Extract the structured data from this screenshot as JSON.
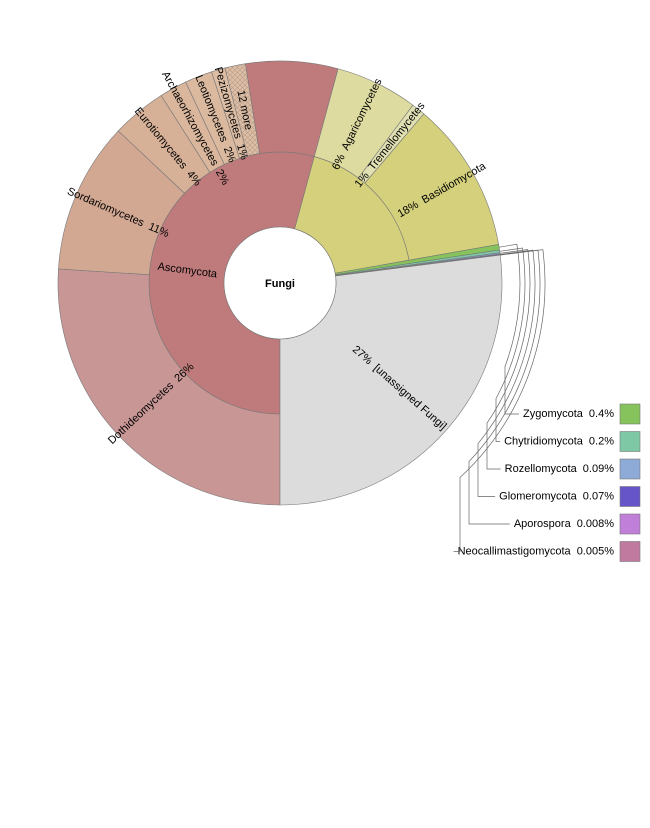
{
  "chart_data": {
    "type": "sunburst",
    "center": "Fungi",
    "children": [
      {
        "name": "Ascomycota",
        "value": 54.2,
        "color": "#bf7b7b",
        "children": [
          {
            "name": "Dothideomycetes",
            "value": 26,
            "value_label": "26%",
            "color": "#c99696"
          },
          {
            "name": "Sordariomycetes",
            "value": 11,
            "value_label": "11%",
            "color": "#d3a893"
          },
          {
            "name": "Eurotiomycetes",
            "value": 4,
            "value_label": "4%",
            "color": "#d6b198"
          },
          {
            "name": "Archaeorhizomycetes",
            "value": 2,
            "value_label": "2%",
            "color": "#d9b69c"
          },
          {
            "name": "Leotiomycetes",
            "value": 2,
            "value_label": "2%",
            "color": "#dab99f"
          },
          {
            "name": "Pezizomycetes",
            "value": 1,
            "value_label": "1%",
            "color": "#dcbca3"
          },
          {
            "name": "12 more",
            "value": 1.5,
            "color": "#dcbfa6",
            "hatched": true
          }
        ]
      },
      {
        "name": "Basidiomycota",
        "value": 18,
        "value_label": "18%",
        "color": "#d4d07c",
        "children": [
          {
            "name": "Agaricomycetes",
            "value": 6,
            "value_label": "6%",
            "color": "#dddb9f"
          },
          {
            "name": "Tremellomycetes",
            "value": 1,
            "value_label": "1%",
            "color": "#e0e0b3"
          }
        ]
      },
      {
        "name": "Zygomycota",
        "value": 0.4,
        "value_label": "0.4%",
        "color": "#86c35c"
      },
      {
        "name": "Chytridiomycota",
        "value": 0.2,
        "value_label": "0.2%",
        "color": "#7ec8a6"
      },
      {
        "name": "Rozellomycota",
        "value": 0.09,
        "value_label": "0.09%",
        "color": "#8eaad6"
      },
      {
        "name": "Glomeromycota",
        "value": 0.07,
        "value_label": "0.07%",
        "color": "#6655c8"
      },
      {
        "name": "Aporospora",
        "value": 0.008,
        "value_label": "0.008%",
        "color": "#c07fd8"
      },
      {
        "name": "Neocallimastigomycota",
        "value": 0.005,
        "value_label": "0.005%",
        "color": "#c07aa0"
      },
      {
        "name": "[unassigned Fungi]",
        "value": 27,
        "value_label": "27%",
        "color": "#dcdcdc"
      }
    ]
  }
}
